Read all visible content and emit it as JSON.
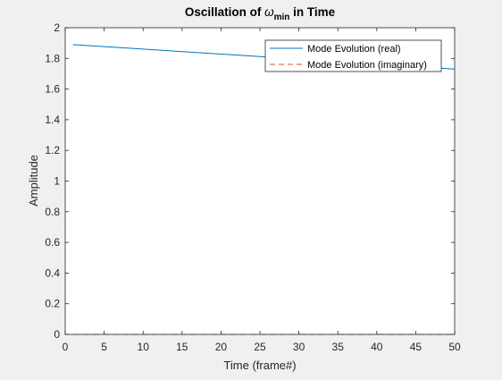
{
  "figure": {
    "background": "#f0f0f0",
    "axes_background": "#ffffff"
  },
  "chart_data": {
    "type": "line",
    "title": {
      "prefix": "Oscillation of ",
      "symbol": "ω",
      "subscript": "min",
      "suffix": " in Time"
    },
    "xlabel": "Time (frame#)",
    "ylabel": "Amplitude",
    "xlim": [
      0,
      50
    ],
    "ylim": [
      0,
      2
    ],
    "xticks": [
      0,
      5,
      10,
      15,
      20,
      25,
      30,
      35,
      40,
      45,
      50
    ],
    "yticks": [
      0,
      0.2,
      0.4,
      0.6,
      0.8,
      1,
      1.2,
      1.4,
      1.6,
      1.8,
      2
    ],
    "grid": false,
    "legend_position": "top-right",
    "series": [
      {
        "name": "Mode Evolution (real)",
        "color": "#0072bd",
        "dash": "solid",
        "x": [
          1,
          50
        ],
        "y": [
          1.89,
          1.73
        ]
      },
      {
        "name": "Mode Evolution (imaginary)",
        "color": "#d95319",
        "dash": "dashed",
        "x": [
          1,
          50
        ],
        "y": [
          0,
          0
        ]
      }
    ]
  }
}
